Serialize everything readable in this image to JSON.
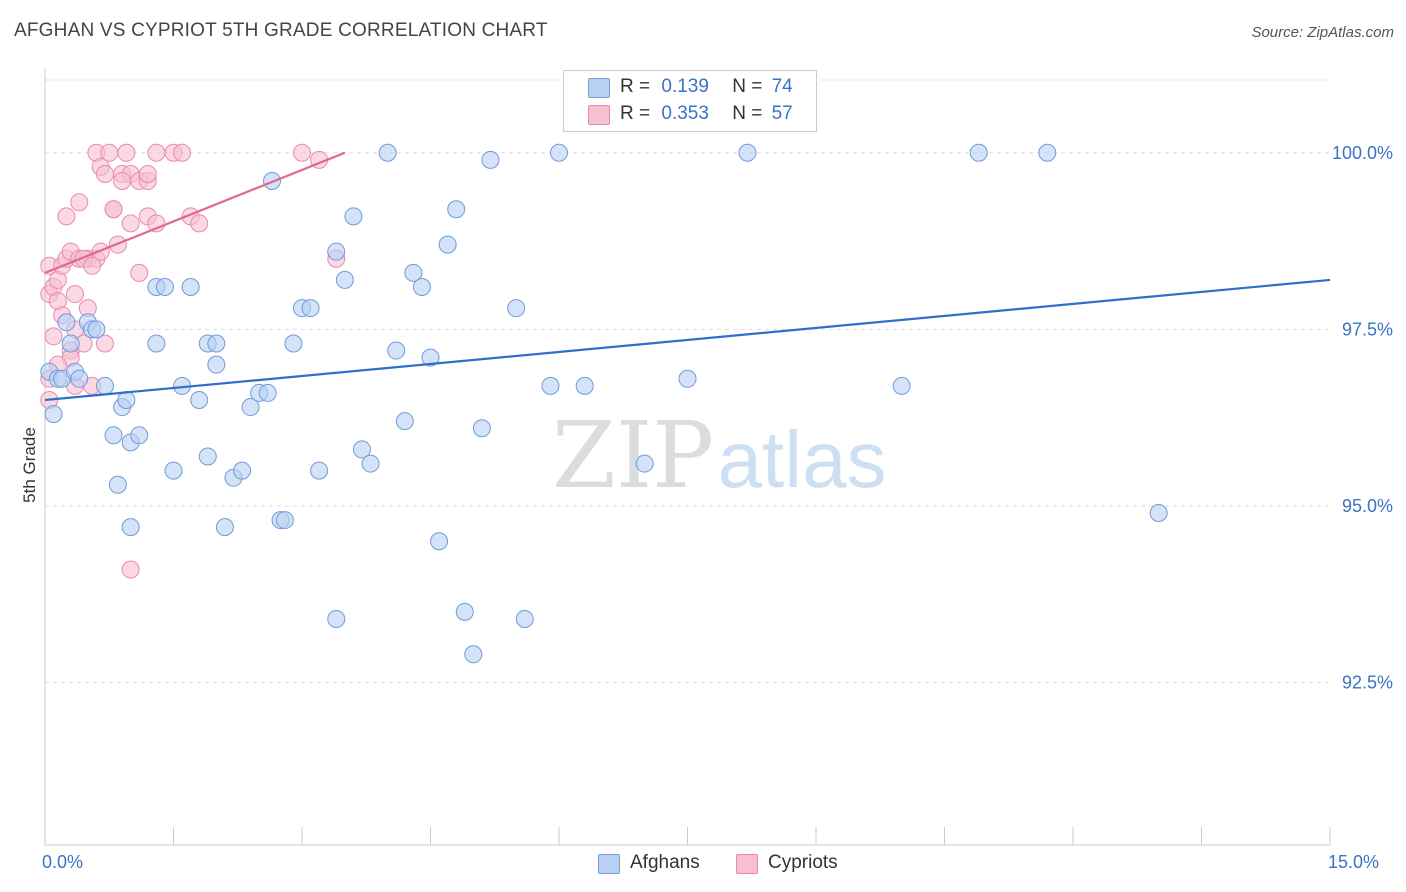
{
  "title": "AFGHAN VS CYPRIOT 5TH GRADE CORRELATION CHART",
  "source": "Source: ZipAtlas.com",
  "watermark": {
    "zip": "ZIP",
    "atlas": "atlas"
  },
  "legend_top": {
    "afghans": {
      "r_label": "R =",
      "r_value": "0.139",
      "n_label": "N =",
      "n_value": "74"
    },
    "cypriots": {
      "r_label": "R =",
      "r_value": "0.353",
      "n_label": "N =",
      "n_value": "57"
    }
  },
  "colors": {
    "blue_fill": "#b8d0f4",
    "blue_stroke": "#6f9bdb",
    "blue_line": "#2f6fcb",
    "pink_fill": "#f7bfd2",
    "pink_stroke": "#e88ab0",
    "pink_line": "#e06792",
    "grid": "#dddddd",
    "tick_text": "#3a73c4"
  },
  "chart_data": {
    "type": "scatter",
    "title": "AFGHAN VS CYPRIOT 5TH GRADE CORRELATION CHART",
    "xlabel": "",
    "ylabel": "5th Grade",
    "xlim": [
      0,
      15
    ],
    "ylim": [
      90.2,
      101.2
    ],
    "x_tick_labels": [
      "0.0%",
      "15.0%"
    ],
    "y_ticks": [
      92.5,
      95.0,
      97.5,
      100.0
    ],
    "y_tick_labels": [
      "92.5%",
      "95.0%",
      "97.5%",
      "100.0%"
    ],
    "grid": true,
    "legend": [
      "Afghans",
      "Cypriots"
    ],
    "series": [
      {
        "name": "Afghans",
        "R": 0.139,
        "N": 74,
        "trend": [
          [
            0,
            96.5
          ],
          [
            15,
            98.2
          ]
        ],
        "points": [
          [
            0.05,
            96.9
          ],
          [
            0.1,
            96.3
          ],
          [
            0.15,
            96.8
          ],
          [
            0.2,
            96.8
          ],
          [
            0.25,
            97.6
          ],
          [
            0.3,
            97.3
          ],
          [
            0.35,
            96.9
          ],
          [
            0.4,
            96.8
          ],
          [
            0.5,
            97.6
          ],
          [
            0.55,
            97.5
          ],
          [
            0.6,
            97.5
          ],
          [
            0.7,
            96.7
          ],
          [
            0.8,
            96.0
          ],
          [
            0.85,
            95.3
          ],
          [
            0.9,
            96.4
          ],
          [
            0.95,
            96.5
          ],
          [
            1.0,
            95.9
          ],
          [
            1.1,
            96.0
          ],
          [
            1.3,
            97.3
          ],
          [
            1.3,
            98.1
          ],
          [
            1.4,
            98.1
          ],
          [
            1.5,
            95.5
          ],
          [
            1.6,
            96.7
          ],
          [
            1.7,
            98.1
          ],
          [
            1.8,
            96.5
          ],
          [
            1.9,
            97.3
          ],
          [
            1.9,
            95.7
          ],
          [
            2.0,
            97.3
          ],
          [
            2.1,
            94.7
          ],
          [
            2.2,
            95.4
          ],
          [
            2.3,
            95.5
          ],
          [
            2.4,
            96.4
          ],
          [
            2.5,
            96.6
          ],
          [
            2.6,
            96.6
          ],
          [
            2.65,
            99.6
          ],
          [
            2.75,
            94.8
          ],
          [
            2.8,
            94.8
          ],
          [
            2.9,
            97.3
          ],
          [
            3.0,
            97.8
          ],
          [
            3.1,
            97.8
          ],
          [
            3.2,
            95.5
          ],
          [
            3.4,
            98.6
          ],
          [
            3.4,
            93.4
          ],
          [
            3.5,
            98.2
          ],
          [
            3.6,
            99.1
          ],
          [
            3.7,
            95.8
          ],
          [
            3.8,
            95.6
          ],
          [
            4.0,
            100.0
          ],
          [
            4.1,
            97.2
          ],
          [
            4.2,
            96.2
          ],
          [
            4.3,
            98.3
          ],
          [
            4.4,
            98.1
          ],
          [
            4.5,
            97.1
          ],
          [
            4.6,
            94.5
          ],
          [
            4.7,
            98.7
          ],
          [
            4.8,
            99.2
          ],
          [
            4.9,
            93.5
          ],
          [
            5.0,
            92.9
          ],
          [
            5.1,
            96.1
          ],
          [
            5.2,
            99.9
          ],
          [
            5.5,
            97.8
          ],
          [
            5.6,
            93.4
          ],
          [
            5.9,
            96.7
          ],
          [
            6.0,
            100.0
          ],
          [
            6.3,
            96.7
          ],
          [
            7.0,
            95.6
          ],
          [
            7.5,
            96.8
          ],
          [
            8.2,
            100.0
          ],
          [
            10.0,
            96.7
          ],
          [
            10.9,
            100.0
          ],
          [
            11.7,
            100.0
          ],
          [
            13.0,
            94.9
          ],
          [
            1.0,
            94.7
          ],
          [
            2.0,
            97.0
          ]
        ]
      },
      {
        "name": "Cypriots",
        "R": 0.353,
        "N": 57,
        "trend": [
          [
            0,
            98.3
          ],
          [
            3.5,
            100.0
          ]
        ],
        "points": [
          [
            0.05,
            98.4
          ],
          [
            0.05,
            98.0
          ],
          [
            0.05,
            96.8
          ],
          [
            0.05,
            96.5
          ],
          [
            0.1,
            98.1
          ],
          [
            0.1,
            97.4
          ],
          [
            0.15,
            98.2
          ],
          [
            0.15,
            97.9
          ],
          [
            0.2,
            98.4
          ],
          [
            0.2,
            97.7
          ],
          [
            0.25,
            98.5
          ],
          [
            0.25,
            99.1
          ],
          [
            0.3,
            98.6
          ],
          [
            0.3,
            97.2
          ],
          [
            0.35,
            98.0
          ],
          [
            0.35,
            96.7
          ],
          [
            0.4,
            98.5
          ],
          [
            0.4,
            99.3
          ],
          [
            0.45,
            97.3
          ],
          [
            0.5,
            98.5
          ],
          [
            0.5,
            97.8
          ],
          [
            0.55,
            96.7
          ],
          [
            0.6,
            100.0
          ],
          [
            0.65,
            99.8
          ],
          [
            0.7,
            99.7
          ],
          [
            0.75,
            100.0
          ],
          [
            0.8,
            99.2
          ],
          [
            0.85,
            98.7
          ],
          [
            0.9,
            99.7
          ],
          [
            0.95,
            100.0
          ],
          [
            1.0,
            99.7
          ],
          [
            1.0,
            99.0
          ],
          [
            1.1,
            99.6
          ],
          [
            1.1,
            98.3
          ],
          [
            1.2,
            99.1
          ],
          [
            1.3,
            99.0
          ],
          [
            1.2,
            99.6
          ],
          [
            1.2,
            99.7
          ],
          [
            1.3,
            100.0
          ],
          [
            1.5,
            100.0
          ],
          [
            1.6,
            100.0
          ],
          [
            1.7,
            99.1
          ],
          [
            1.8,
            99.0
          ],
          [
            0.6,
            98.5
          ],
          [
            0.7,
            97.3
          ],
          [
            0.8,
            99.2
          ],
          [
            0.9,
            99.6
          ],
          [
            1.0,
            94.1
          ],
          [
            0.3,
            97.1
          ],
          [
            3.0,
            100.0
          ],
          [
            3.2,
            99.9
          ],
          [
            3.4,
            98.5
          ],
          [
            0.15,
            97.0
          ],
          [
            0.45,
            98.5
          ],
          [
            0.55,
            98.4
          ],
          [
            0.35,
            97.5
          ],
          [
            0.65,
            98.6
          ]
        ]
      }
    ]
  }
}
